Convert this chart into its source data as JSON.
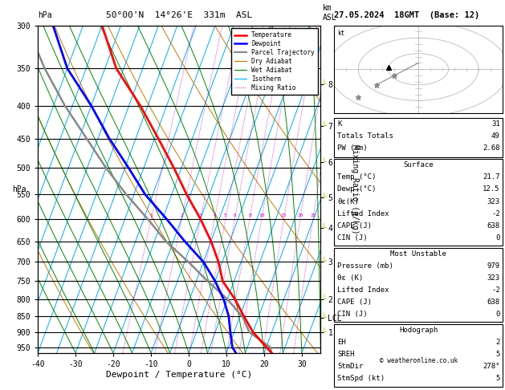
{
  "title_left": "50°00'N  14°26'E  331m  ASL",
  "title_date": "27.05.2024  18GMT  (Base: 12)",
  "xlabel": "Dewpoint / Temperature (°C)",
  "pressure_levels": [
    300,
    350,
    400,
    450,
    500,
    550,
    600,
    650,
    700,
    750,
    800,
    850,
    900,
    950
  ],
  "pressure_min": 300,
  "pressure_max": 970,
  "temp_min": -40,
  "temp_max": 35,
  "skew_factor": 32,
  "legend_items": [
    {
      "label": "Temperature",
      "color": "#ff0000",
      "lw": 1.8,
      "ls": "-"
    },
    {
      "label": "Dewpoint",
      "color": "#0000ff",
      "lw": 1.8,
      "ls": "-"
    },
    {
      "label": "Parcel Trajectory",
      "color": "#888888",
      "lw": 1.5,
      "ls": "-"
    },
    {
      "label": "Dry Adiabat",
      "color": "#cc7700",
      "lw": 0.8,
      "ls": "-"
    },
    {
      "label": "Wet Adiabat",
      "color": "#008800",
      "lw": 0.8,
      "ls": "-"
    },
    {
      "label": "Isotherm",
      "color": "#00aaff",
      "lw": 0.8,
      "ls": "-"
    },
    {
      "label": "Mixing Ratio",
      "color": "#cc00cc",
      "lw": 0.7,
      "ls": ":"
    }
  ],
  "temp_profile": {
    "pressure": [
      970,
      950,
      900,
      850,
      800,
      750,
      700,
      650,
      600,
      550,
      500,
      450,
      400,
      350,
      300
    ],
    "temp": [
      22,
      20,
      15,
      11,
      7,
      2,
      -1,
      -5,
      -10,
      -16,
      -22,
      -29,
      -37,
      -47,
      -55
    ]
  },
  "dewp_profile": {
    "pressure": [
      970,
      950,
      900,
      850,
      800,
      750,
      700,
      650,
      600,
      550,
      500,
      450,
      400,
      350,
      300
    ],
    "temp": [
      12.5,
      11,
      9,
      7,
      4,
      0,
      -5,
      -12,
      -19,
      -27,
      -34,
      -42,
      -50,
      -60,
      -68
    ]
  },
  "parcel_profile": {
    "pressure": [
      970,
      950,
      900,
      855,
      800,
      750,
      700,
      650,
      600,
      550,
      500,
      450,
      400,
      350,
      300
    ],
    "temp": [
      22,
      21,
      14,
      11,
      5,
      -2,
      -9,
      -17,
      -24,
      -32,
      -40,
      -48,
      -57,
      -66,
      -75
    ]
  },
  "km_ticks": [
    {
      "label": "8",
      "pressure": 370
    },
    {
      "label": "7",
      "pressure": 430
    },
    {
      "label": "6",
      "pressure": 490
    },
    {
      "label": "5",
      "pressure": 555
    },
    {
      "label": "4",
      "pressure": 620
    },
    {
      "label": "3",
      "pressure": 700
    },
    {
      "label": "2",
      "pressure": 800
    },
    {
      "label": "LCL",
      "pressure": 855
    },
    {
      "label": "1",
      "pressure": 900
    }
  ],
  "lcl_pressure": 855,
  "mr_values": [
    1,
    2,
    3,
    4,
    5,
    6,
    8,
    10,
    15,
    20,
    25
  ],
  "mr_label_pressure": 600,
  "stats_k": 31,
  "stats_tt": 49,
  "stats_pw": 2.68,
  "surf_temp": 21.7,
  "surf_dewp": 12.5,
  "surf_theta": 323,
  "surf_li": -2,
  "surf_cape": 638,
  "surf_cin": 0,
  "mu_pres": 979,
  "mu_theta": 323,
  "mu_li": -2,
  "mu_cape": 638,
  "mu_cin": 0,
  "hodo_eh": 2,
  "hodo_sreh": 5,
  "hodo_stmdir": "278°",
  "hodo_stmspd": 5,
  "copyright": "© weatheronline.co.uk",
  "isotherm_color": "#00aaff",
  "dryadiabat_color": "#cc7700",
  "wetadiabat_color": "#008800",
  "mr_color": "#cc00cc",
  "temp_color": "#ff0000",
  "dewp_color": "#0000ff",
  "parcel_color": "#888888",
  "green_tick_color": "#99cc00"
}
